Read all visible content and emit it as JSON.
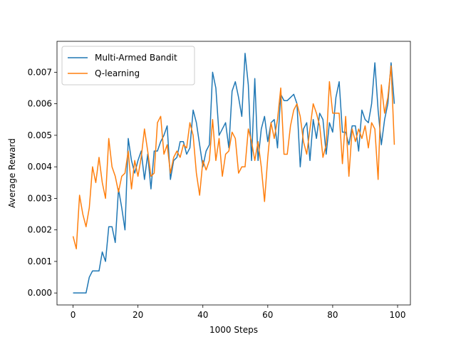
{
  "chart_data": {
    "type": "line",
    "xlabel": "1000 Steps",
    "ylabel": "Average Reward",
    "x": [
      0,
      1,
      2,
      3,
      4,
      5,
      6,
      7,
      8,
      9,
      10,
      11,
      12,
      13,
      14,
      15,
      16,
      17,
      18,
      19,
      20,
      21,
      22,
      23,
      24,
      25,
      26,
      27,
      28,
      29,
      30,
      31,
      32,
      33,
      34,
      35,
      36,
      37,
      38,
      39,
      40,
      41,
      42,
      43,
      44,
      45,
      46,
      47,
      48,
      49,
      50,
      51,
      52,
      53,
      54,
      55,
      56,
      57,
      58,
      59,
      60,
      61,
      62,
      63,
      64,
      65,
      66,
      67,
      68,
      69,
      70,
      71,
      72,
      73,
      74,
      75,
      76,
      77,
      78,
      79,
      80,
      81,
      82,
      83,
      84,
      85,
      86,
      87,
      88,
      89,
      90,
      91,
      92,
      93,
      94,
      95,
      96,
      97,
      98,
      99
    ],
    "series": [
      {
        "name": "Multi-Armed Bandit",
        "color": "#1f77b4",
        "values": [
          0,
          0,
          0,
          0,
          0,
          0.0005,
          0.0007,
          0.0007,
          0.0007,
          0.0013,
          0.001,
          0.0021,
          0.0021,
          0.0016,
          0.0033,
          0.0027,
          0.002,
          0.0049,
          0.0042,
          0.0038,
          0.0042,
          0.0045,
          0.0036,
          0.0044,
          0.0033,
          0.0045,
          0.0045,
          0.0048,
          0.005,
          0.0053,
          0.0036,
          0.0042,
          0.0043,
          0.0048,
          0.0048,
          0.0044,
          0.0046,
          0.0058,
          0.0054,
          0.0047,
          0.004,
          0.0045,
          0.0047,
          0.007,
          0.0065,
          0.005,
          0.0052,
          0.0054,
          0.0046,
          0.0064,
          0.0067,
          0.0062,
          0.0056,
          0.0076,
          0.0066,
          0.0042,
          0.0068,
          0.0042,
          0.0052,
          0.0056,
          0.0048,
          0.0054,
          0.0055,
          0.0046,
          0.0063,
          0.0061,
          0.0061,
          0.0062,
          0.0063,
          0.006,
          0.004,
          0.0052,
          0.0054,
          0.0042,
          0.0055,
          0.0049,
          0.0057,
          0.0055,
          0.0044,
          0.0054,
          0.0051,
          0.0062,
          0.0067,
          0.0051,
          0.0051,
          0.0047,
          0.0053,
          0.0053,
          0.0045,
          0.0058,
          0.0055,
          0.0054,
          0.006,
          0.0073,
          0.0058,
          0.0047,
          0.0055,
          0.006,
          0.0073,
          0.006
        ]
      },
      {
        "name": "Q-learning",
        "color": "#ff7f0e",
        "values": [
          0.0018,
          0.0014,
          0.0031,
          0.0025,
          0.0021,
          0.0027,
          0.004,
          0.0035,
          0.0043,
          0.0035,
          0.003,
          0.0049,
          0.004,
          0.0037,
          0.0032,
          0.0037,
          0.0038,
          0.0045,
          0.0033,
          0.0042,
          0.0037,
          0.0043,
          0.0052,
          0.0045,
          0.0037,
          0.0038,
          0.0054,
          0.0056,
          0.0044,
          0.0047,
          0.0038,
          0.0043,
          0.0045,
          0.0043,
          0.0047,
          0.0046,
          0.0054,
          0.005,
          0.0038,
          0.0031,
          0.0042,
          0.0039,
          0.0042,
          0.0055,
          0.0042,
          0.0049,
          0.0037,
          0.0044,
          0.0045,
          0.0051,
          0.0049,
          0.0038,
          0.004,
          0.004,
          0.0052,
          0.0048,
          0.0042,
          0.0048,
          0.004,
          0.0029,
          0.0043,
          0.0054,
          0.0049,
          0.0055,
          0.0065,
          0.0044,
          0.0044,
          0.0053,
          0.0058,
          0.006,
          0.0056,
          0.0048,
          0.0044,
          0.0052,
          0.006,
          0.0057,
          0.0053,
          0.0043,
          0.0047,
          0.0067,
          0.0057,
          0.0057,
          0.0057,
          0.0041,
          0.0056,
          0.0037,
          0.0052,
          0.0048,
          0.0052,
          0.0049,
          0.0053,
          0.0046,
          0.0054,
          0.0052,
          0.0036,
          0.0066,
          0.0057,
          0.0062,
          0.0072,
          0.0047
        ]
      }
    ],
    "xlim": [
      -4.95,
      103.95
    ],
    "ylim": [
      -0.00038,
      0.00798
    ],
    "xticks": [
      0,
      20,
      40,
      60,
      80,
      100
    ],
    "yticks": [
      {
        "value": 0,
        "label": "0.000"
      },
      {
        "value": 0.001,
        "label": "0.001"
      },
      {
        "value": 0.002,
        "label": "0.002"
      },
      {
        "value": 0.003,
        "label": "0.003"
      },
      {
        "value": 0.004,
        "label": "0.004"
      },
      {
        "value": 0.005,
        "label": "0.005"
      },
      {
        "value": 0.006,
        "label": "0.006"
      },
      {
        "value": 0.007,
        "label": "0.007"
      }
    ],
    "legend": "upper left"
  }
}
